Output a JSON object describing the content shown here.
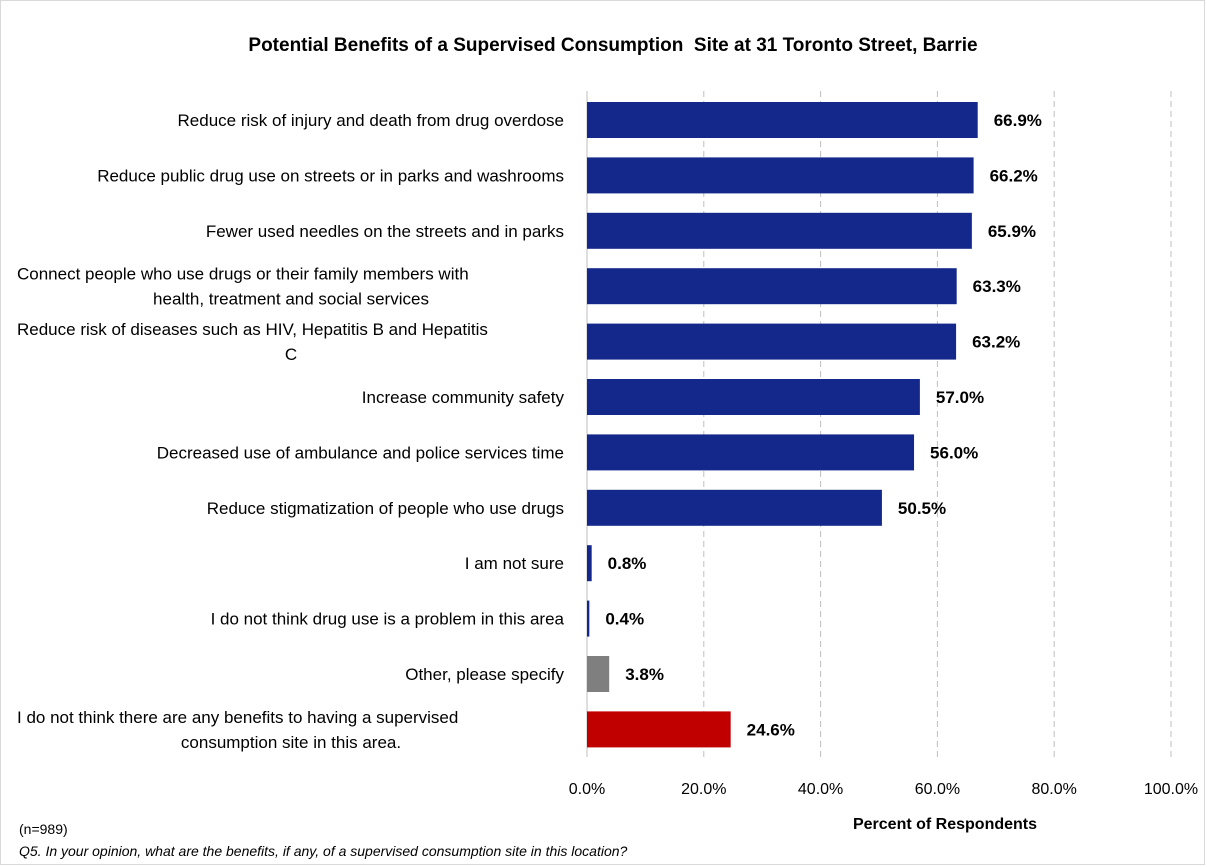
{
  "chart_data": {
    "type": "bar",
    "orientation": "horizontal",
    "title": "Potential Benefits of a Supervised Consumption  Site at 31 Toronto Street, Barrie",
    "xlabel": "Percent of Respondents",
    "ylabel": "",
    "xlim": [
      0,
      100
    ],
    "x_ticks": [
      "0.0%",
      "20.0%",
      "40.0%",
      "60.0%",
      "80.0%",
      "100.0%"
    ],
    "x_tick_values": [
      0,
      20,
      40,
      60,
      80,
      100
    ],
    "grid": "vertical dashed",
    "categories": [
      [
        "Reduce risk of injury and death from drug overdose"
      ],
      [
        "Reduce public drug use on streets or in parks and washrooms"
      ],
      [
        "Fewer used needles on the streets and in parks"
      ],
      [
        "Connect people who use drugs or their family members with",
        "health, treatment and social services"
      ],
      [
        "Reduce risk of diseases such as HIV, Hepatitis B and Hepatitis",
        "C"
      ],
      [
        "Increase community safety"
      ],
      [
        "Decreased use of ambulance and police services time"
      ],
      [
        "Reduce stigmatization of people who use drugs"
      ],
      [
        "I am not sure"
      ],
      [
        "I do not think drug use is a problem in this area"
      ],
      [
        "Other, please specify"
      ],
      [
        "I do not think there are any benefits to having a supervised",
        "consumption site in this area."
      ]
    ],
    "values": [
      66.9,
      66.2,
      65.9,
      63.3,
      63.2,
      57.0,
      56.0,
      50.5,
      0.8,
      0.4,
      3.8,
      24.6
    ],
    "value_labels": [
      "66.9%",
      "66.2%",
      "65.9%",
      "63.3%",
      "63.2%",
      "57.0%",
      "56.0%",
      "50.5%",
      "0.8%",
      "0.4%",
      "3.8%",
      "24.6%"
    ],
    "bar_colors": [
      "#13288a",
      "#13288a",
      "#13288a",
      "#13288a",
      "#13288a",
      "#13288a",
      "#13288a",
      "#13288a",
      "#13288a",
      "#13288a",
      "#7f7f7f",
      "#c00000"
    ]
  },
  "notes": {
    "sample": "(n=989)",
    "question": "Q5. In your opinion, what are the benefits, if any, of a supervised consumption site in this location?"
  }
}
